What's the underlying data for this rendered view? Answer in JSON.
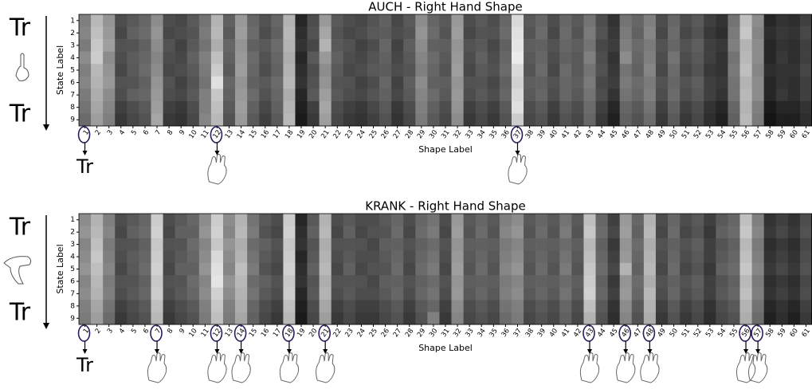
{
  "chart_data": [
    {
      "type": "heatmap",
      "title": "AUCH - Right Hand Shape",
      "xlabel": "Shape Label",
      "ylabel": "State Label",
      "side_labels": [
        "Tr",
        "Tr"
      ],
      "below_text": "Tr",
      "categories": [
        1,
        2,
        3,
        4,
        5,
        6,
        7,
        8,
        9,
        10,
        11,
        12,
        13,
        14,
        15,
        16,
        17,
        18,
        19,
        20,
        21,
        22,
        23,
        24,
        25,
        26,
        27,
        28,
        29,
        30,
        31,
        32,
        33,
        34,
        35,
        36,
        37,
        38,
        39,
        40,
        41,
        42,
        43,
        44,
        45,
        46,
        47,
        48,
        49,
        50,
        51,
        52,
        53,
        54,
        55,
        56,
        57,
        58,
        59,
        60,
        61
      ],
      "rows": [
        1,
        2,
        3,
        4,
        5,
        6,
        7,
        8,
        9
      ],
      "highlight": [
        1,
        12,
        37
      ],
      "values": [
        [
          50,
          72,
          58,
          30,
          35,
          40,
          55,
          30,
          28,
          35,
          45,
          70,
          38,
          60,
          40,
          32,
          40,
          70,
          15,
          30,
          60,
          35,
          30,
          28,
          33,
          38,
          28,
          35,
          55,
          40,
          35,
          60,
          30,
          35,
          30,
          40,
          85,
          35,
          40,
          30,
          40,
          35,
          45,
          30,
          20,
          45,
          40,
          50,
          30,
          40,
          30,
          35,
          25,
          20,
          45,
          75,
          55,
          15,
          20,
          18,
          25
        ],
        [
          52,
          75,
          60,
          28,
          38,
          42,
          58,
          28,
          30,
          33,
          48,
          72,
          35,
          62,
          42,
          30,
          38,
          72,
          18,
          32,
          65,
          33,
          28,
          30,
          35,
          36,
          30,
          33,
          58,
          42,
          33,
          62,
          28,
          33,
          32,
          42,
          88,
          33,
          42,
          28,
          42,
          33,
          48,
          32,
          22,
          48,
          38,
          52,
          28,
          42,
          28,
          33,
          22,
          18,
          48,
          78,
          52,
          18,
          22,
          20,
          28
        ],
        [
          48,
          78,
          62,
          32,
          33,
          38,
          55,
          32,
          26,
          35,
          45,
          68,
          40,
          58,
          38,
          35,
          42,
          70,
          20,
          28,
          70,
          35,
          32,
          26,
          30,
          40,
          26,
          37,
          55,
          38,
          37,
          58,
          32,
          35,
          28,
          38,
          90,
          37,
          38,
          32,
          40,
          37,
          45,
          28,
          24,
          50,
          42,
          48,
          32,
          40,
          32,
          37,
          25,
          22,
          50,
          70,
          55,
          15,
          20,
          18,
          25
        ],
        [
          55,
          80,
          55,
          30,
          36,
          40,
          52,
          30,
          28,
          38,
          50,
          75,
          38,
          60,
          42,
          32,
          40,
          68,
          15,
          35,
          60,
          38,
          30,
          28,
          33,
          38,
          28,
          35,
          52,
          42,
          35,
          60,
          30,
          38,
          30,
          40,
          92,
          35,
          40,
          30,
          38,
          35,
          50,
          30,
          20,
          55,
          40,
          50,
          30,
          45,
          30,
          35,
          25,
          20,
          45,
          72,
          55,
          15,
          22,
          18,
          25
        ],
        [
          50,
          72,
          58,
          28,
          35,
          42,
          55,
          28,
          30,
          35,
          48,
          80,
          35,
          62,
          40,
          30,
          38,
          70,
          18,
          30,
          55,
          35,
          28,
          30,
          35,
          36,
          30,
          33,
          50,
          40,
          33,
          62,
          28,
          35,
          32,
          42,
          85,
          33,
          42,
          28,
          42,
          35,
          45,
          32,
          22,
          45,
          38,
          52,
          28,
          42,
          28,
          33,
          22,
          20,
          48,
          75,
          52,
          18,
          20,
          20,
          28
        ],
        [
          52,
          70,
          60,
          32,
          33,
          38,
          58,
          32,
          26,
          33,
          45,
          88,
          40,
          58,
          38,
          35,
          42,
          72,
          20,
          32,
          58,
          33,
          32,
          26,
          30,
          40,
          26,
          37,
          55,
          38,
          37,
          58,
          32,
          33,
          28,
          38,
          82,
          37,
          38,
          32,
          40,
          37,
          48,
          28,
          24,
          48,
          42,
          48,
          32,
          40,
          32,
          37,
          25,
          22,
          45,
          70,
          55,
          15,
          20,
          18,
          25
        ],
        [
          48,
          68,
          55,
          30,
          38,
          40,
          60,
          30,
          28,
          35,
          50,
          78,
          38,
          60,
          42,
          32,
          40,
          68,
          15,
          35,
          62,
          35,
          30,
          28,
          33,
          38,
          28,
          35,
          52,
          42,
          35,
          60,
          30,
          35,
          30,
          40,
          85,
          35,
          40,
          30,
          40,
          35,
          45,
          30,
          20,
          45,
          40,
          50,
          30,
          42,
          30,
          35,
          25,
          20,
          45,
          72,
          55,
          15,
          22,
          18,
          25
        ],
        [
          45,
          65,
          52,
          25,
          30,
          35,
          62,
          25,
          22,
          30,
          50,
          75,
          35,
          62,
          38,
          28,
          38,
          70,
          12,
          25,
          65,
          30,
          25,
          22,
          28,
          35,
          22,
          30,
          50,
          38,
          30,
          58,
          25,
          30,
          25,
          35,
          88,
          30,
          35,
          25,
          35,
          30,
          42,
          25,
          15,
          40,
          35,
          45,
          25,
          38,
          25,
          30,
          20,
          15,
          40,
          70,
          50,
          10,
          15,
          15,
          20
        ],
        [
          42,
          62,
          50,
          22,
          28,
          32,
          65,
          22,
          20,
          28,
          52,
          72,
          32,
          60,
          35,
          25,
          35,
          72,
          10,
          22,
          62,
          28,
          22,
          20,
          25,
          32,
          20,
          28,
          48,
          35,
          28,
          55,
          22,
          28,
          22,
          32,
          80,
          28,
          32,
          22,
          32,
          28,
          40,
          22,
          12,
          38,
          32,
          42,
          22,
          35,
          22,
          28,
          18,
          12,
          38,
          72,
          48,
          8,
          12,
          12,
          18
        ]
      ]
    },
    {
      "type": "heatmap",
      "title": "KRANK - Right Hand Shape",
      "xlabel": "Shape Label",
      "ylabel": "State Label",
      "side_labels": [
        "Tr",
        "Tr"
      ],
      "below_text": "Tr",
      "categories": [
        1,
        2,
        3,
        4,
        5,
        6,
        7,
        8,
        9,
        10,
        11,
        12,
        13,
        14,
        15,
        16,
        17,
        18,
        19,
        20,
        21,
        22,
        23,
        24,
        25,
        26,
        27,
        28,
        29,
        30,
        31,
        32,
        33,
        34,
        35,
        36,
        37,
        38,
        39,
        40,
        41,
        42,
        43,
        44,
        45,
        46,
        47,
        48,
        49,
        50,
        51,
        52,
        53,
        54,
        55,
        56,
        57,
        58,
        59,
        60,
        61
      ],
      "rows": [
        1,
        2,
        3,
        4,
        5,
        6,
        7,
        8,
        9
      ],
      "highlight": [
        1,
        7,
        12,
        14,
        18,
        21,
        43,
        46,
        48,
        56,
        57
      ],
      "values": [
        [
          55,
          70,
          50,
          30,
          35,
          40,
          80,
          30,
          35,
          40,
          55,
          80,
          55,
          70,
          45,
          35,
          30,
          80,
          15,
          35,
          70,
          30,
          35,
          30,
          30,
          35,
          40,
          30,
          40,
          45,
          30,
          60,
          35,
          40,
          35,
          50,
          55,
          35,
          40,
          35,
          45,
          35,
          75,
          40,
          25,
          60,
          40,
          70,
          30,
          40,
          30,
          35,
          25,
          35,
          40,
          75,
          50,
          20,
          25,
          20,
          30
        ],
        [
          58,
          72,
          52,
          28,
          38,
          42,
          82,
          28,
          38,
          38,
          58,
          82,
          52,
          72,
          48,
          32,
          28,
          82,
          18,
          38,
          72,
          28,
          38,
          28,
          32,
          33,
          42,
          28,
          42,
          48,
          28,
          62,
          33,
          42,
          33,
          52,
          58,
          33,
          42,
          33,
          48,
          33,
          78,
          42,
          28,
          62,
          38,
          72,
          28,
          42,
          28,
          33,
          22,
          38,
          42,
          78,
          52,
          22,
          28,
          22,
          32
        ],
        [
          52,
          75,
          48,
          32,
          33,
          38,
          78,
          32,
          33,
          42,
          52,
          78,
          58,
          68,
          42,
          38,
          32,
          78,
          20,
          33,
          68,
          32,
          33,
          32,
          28,
          37,
          38,
          32,
          38,
          42,
          32,
          58,
          37,
          38,
          37,
          48,
          52,
          37,
          38,
          37,
          42,
          37,
          72,
          38,
          22,
          58,
          42,
          68,
          32,
          38,
          32,
          37,
          25,
          33,
          38,
          72,
          48,
          18,
          22,
          18,
          28
        ],
        [
          55,
          78,
          50,
          30,
          36,
          40,
          80,
          30,
          35,
          40,
          55,
          85,
          55,
          70,
          45,
          35,
          30,
          80,
          15,
          35,
          70,
          30,
          35,
          30,
          30,
          35,
          40,
          30,
          40,
          45,
          30,
          60,
          35,
          40,
          35,
          50,
          55,
          35,
          40,
          35,
          45,
          35,
          75,
          40,
          25,
          60,
          40,
          70,
          30,
          40,
          30,
          35,
          25,
          35,
          40,
          75,
          50,
          20,
          25,
          20,
          30
        ],
        [
          58,
          75,
          52,
          28,
          35,
          42,
          82,
          28,
          38,
          38,
          58,
          88,
          52,
          75,
          48,
          32,
          28,
          82,
          18,
          38,
          72,
          28,
          38,
          28,
          32,
          33,
          42,
          28,
          42,
          48,
          28,
          62,
          33,
          42,
          33,
          52,
          58,
          33,
          42,
          33,
          48,
          33,
          78,
          42,
          28,
          70,
          38,
          72,
          28,
          42,
          28,
          33,
          22,
          38,
          42,
          78,
          52,
          22,
          28,
          22,
          32
        ],
        [
          52,
          72,
          48,
          32,
          33,
          38,
          78,
          32,
          33,
          42,
          52,
          90,
          58,
          72,
          42,
          38,
          32,
          78,
          20,
          33,
          68,
          32,
          33,
          32,
          28,
          37,
          38,
          32,
          38,
          42,
          32,
          58,
          37,
          38,
          37,
          48,
          52,
          37,
          38,
          37,
          42,
          37,
          80,
          38,
          22,
          58,
          42,
          68,
          32,
          38,
          32,
          37,
          25,
          33,
          38,
          72,
          48,
          18,
          22,
          18,
          28
        ],
        [
          55,
          70,
          50,
          30,
          35,
          40,
          80,
          30,
          35,
          40,
          55,
          82,
          55,
          70,
          45,
          35,
          30,
          80,
          15,
          35,
          70,
          30,
          35,
          30,
          30,
          35,
          40,
          30,
          40,
          45,
          30,
          60,
          35,
          40,
          35,
          50,
          55,
          35,
          40,
          35,
          45,
          35,
          82,
          40,
          25,
          60,
          40,
          72,
          30,
          40,
          30,
          35,
          25,
          35,
          40,
          75,
          50,
          20,
          25,
          20,
          30
        ],
        [
          50,
          65,
          45,
          25,
          30,
          35,
          75,
          25,
          30,
          35,
          50,
          78,
          50,
          68,
          40,
          30,
          25,
          75,
          12,
          30,
          65,
          25,
          30,
          25,
          25,
          30,
          35,
          25,
          35,
          40,
          25,
          55,
          30,
          35,
          30,
          45,
          50,
          30,
          35,
          30,
          40,
          30,
          75,
          35,
          20,
          55,
          35,
          70,
          25,
          35,
          25,
          30,
          20,
          30,
          35,
          70,
          45,
          15,
          20,
          15,
          25
        ],
        [
          48,
          62,
          42,
          22,
          28,
          32,
          72,
          22,
          28,
          32,
          48,
          75,
          48,
          65,
          38,
          28,
          22,
          72,
          10,
          28,
          62,
          22,
          28,
          22,
          22,
          28,
          32,
          22,
          32,
          50,
          22,
          52,
          28,
          32,
          28,
          42,
          48,
          28,
          32,
          28,
          38,
          28,
          70,
          32,
          18,
          52,
          32,
          68,
          22,
          32,
          22,
          28,
          18,
          28,
          32,
          68,
          42,
          12,
          18,
          12,
          22
        ]
      ]
    }
  ]
}
